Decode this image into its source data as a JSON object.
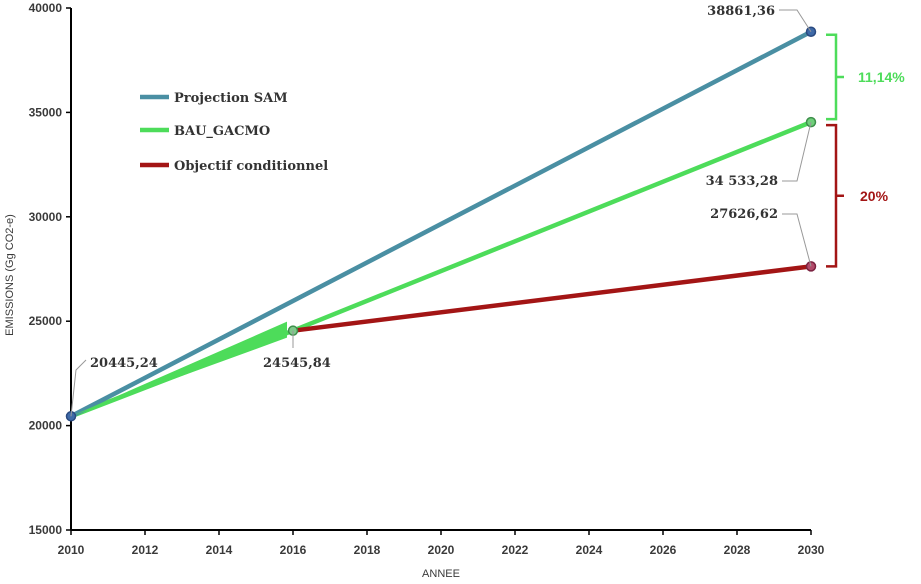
{
  "chart_data": {
    "type": "line",
    "xlabel": "ANNEE",
    "ylabel": "EMISSIONS (Gg CO2-e)",
    "xlim": [
      2010,
      2030
    ],
    "ylim": [
      15000,
      40000
    ],
    "x_ticks": [
      "2010",
      "2012",
      "2014",
      "2016",
      "2018",
      "2020",
      "2022",
      "2024",
      "2026",
      "2028",
      "2030"
    ],
    "y_ticks": [
      "15000",
      "20000",
      "25000",
      "30000",
      "35000",
      "40000"
    ],
    "grid": false,
    "legend_position": "left",
    "series": [
      {
        "name": "Projection SAM",
        "color": "#4a8fa3",
        "x": [
          2010,
          2030
        ],
        "y": [
          20445.24,
          38861.36
        ]
      },
      {
        "name": "BAU_GACMO",
        "color": "#4ddc5a",
        "x": [
          2010,
          2016,
          2030
        ],
        "y": [
          20445.24,
          24545.84,
          34533.28
        ]
      },
      {
        "name": "Objectif conditionnel",
        "color": "#a31515",
        "x": [
          2016,
          2030
        ],
        "y": [
          24545.84,
          27626.62
        ]
      }
    ],
    "data_labels": [
      {
        "text": "20445,24",
        "x": 2010,
        "y": 20445.24
      },
      {
        "text": "24545,84",
        "x": 2016,
        "y": 24545.84
      },
      {
        "text": "38861,36",
        "x": 2030,
        "y": 38861.36
      },
      {
        "text": "34 533,28",
        "x": 2030,
        "y": 34533.28
      },
      {
        "text": "27626,62",
        "x": 2030,
        "y": 27626.62
      }
    ],
    "annotations": [
      {
        "text": "11,14%",
        "from": 38861.36,
        "to": 34533.28,
        "color": "#4ddc5a"
      },
      {
        "text": "20%",
        "from": 34533.28,
        "to": 27626.62,
        "color": "#a31515"
      }
    ]
  }
}
